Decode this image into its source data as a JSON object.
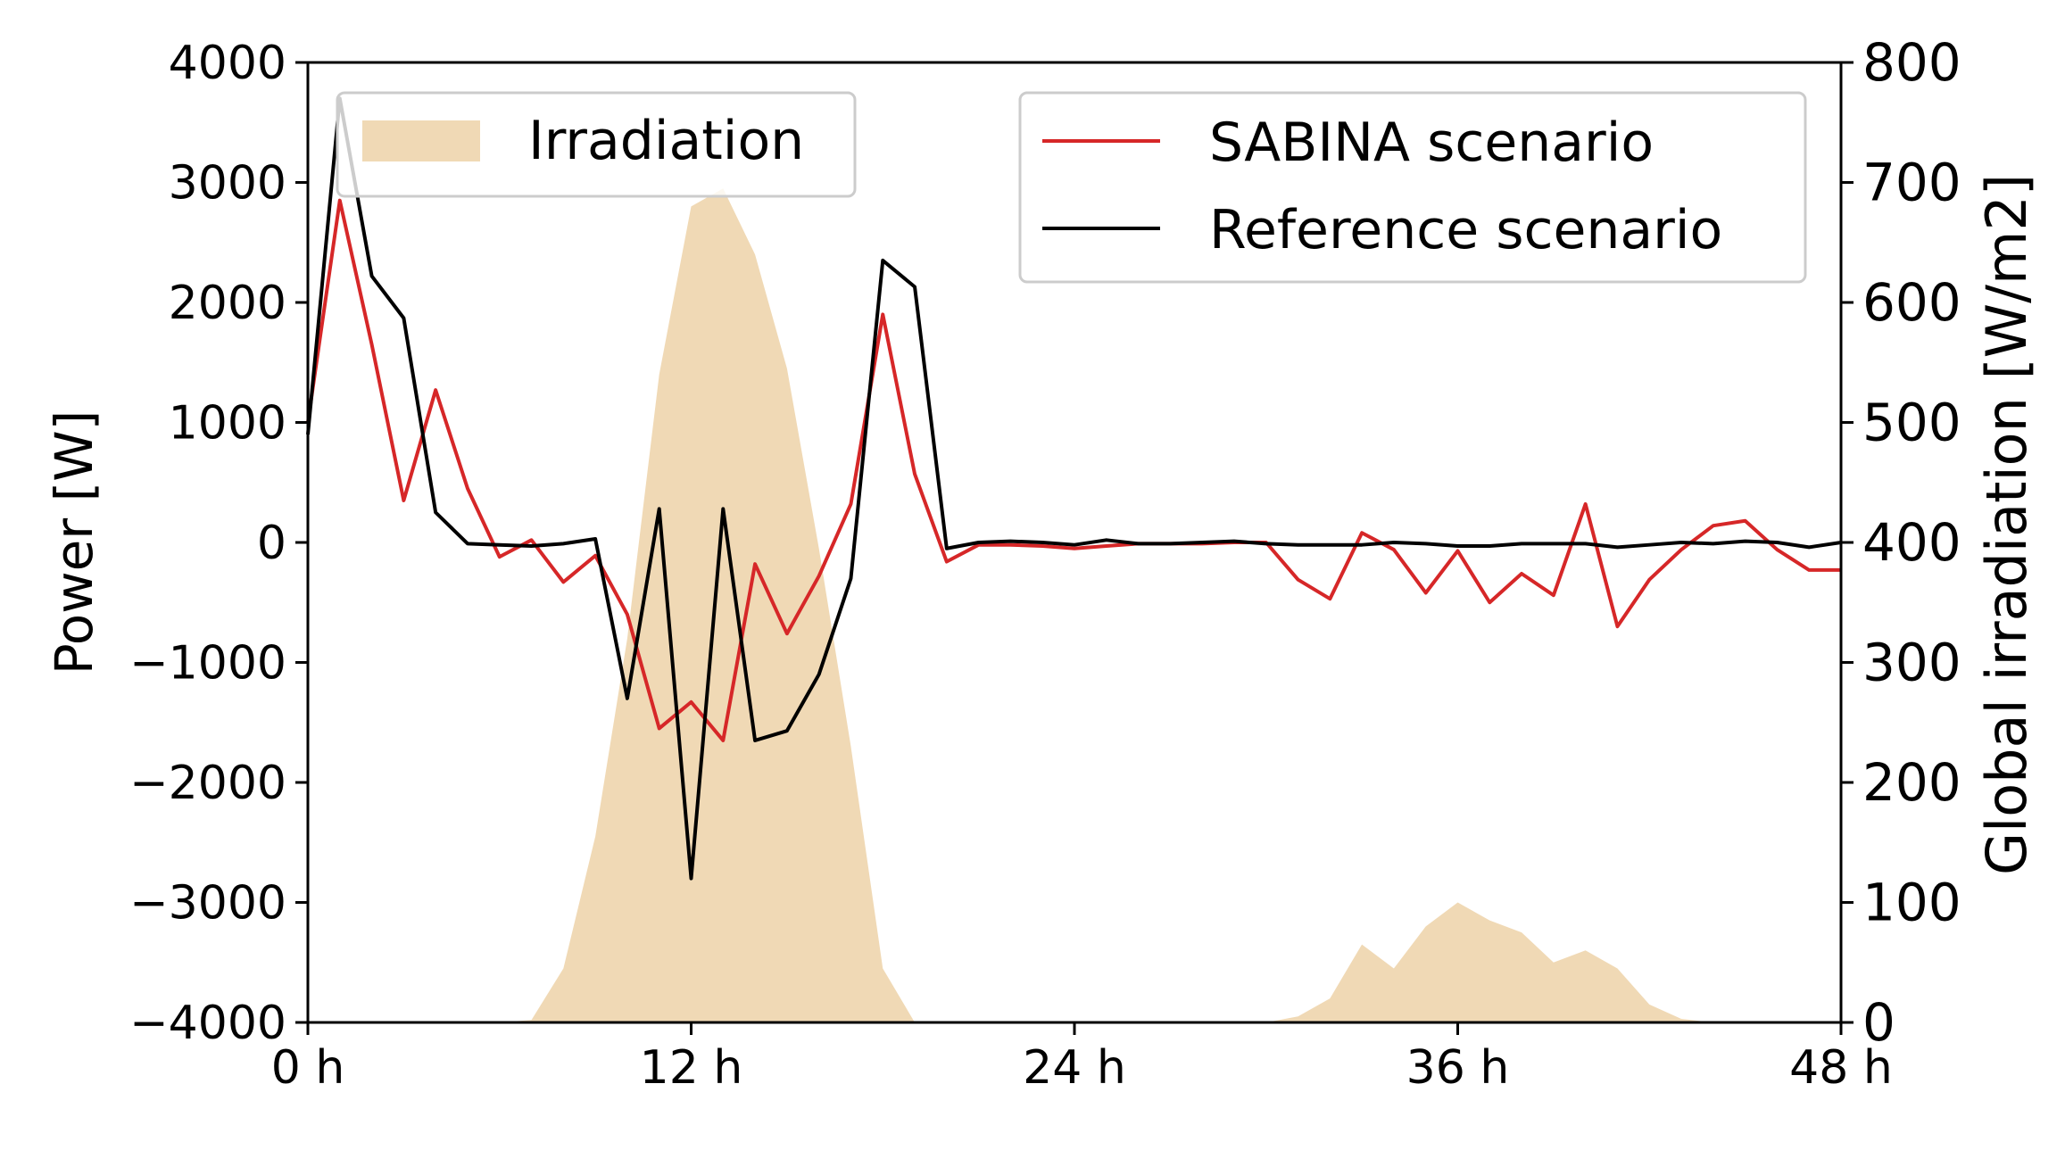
{
  "chart_data": {
    "type": "line",
    "xlabel": "",
    "x_tick_labels": [
      "0 h",
      "12 h",
      "24 h",
      "36 h",
      "48 h"
    ],
    "x_ticks": [
      0,
      12,
      24,
      36,
      48
    ],
    "xlim": [
      0,
      48
    ],
    "ylabel_left": "Power [W]",
    "ylim_left": [
      -4000,
      4000
    ],
    "y_ticks_left": [
      -4000,
      -3000,
      -2000,
      -1000,
      0,
      1000,
      2000,
      3000,
      4000
    ],
    "y_tick_labels_left": [
      "−4000",
      "−3000",
      "−2000",
      "−1000",
      "0",
      "1000",
      "2000",
      "3000",
      "4000"
    ],
    "ylabel_right": "Global irradiation [W/m2]",
    "ylim_right": [
      0,
      800
    ],
    "y_ticks_right": [
      0,
      100,
      200,
      300,
      400,
      500,
      600,
      700,
      800
    ],
    "y_tick_labels_right": [
      "0",
      "100",
      "200",
      "300",
      "400",
      "500",
      "600",
      "700",
      "800"
    ],
    "x": [
      0,
      1,
      2,
      3,
      4,
      5,
      6,
      7,
      8,
      9,
      10,
      11,
      12,
      13,
      14,
      15,
      16,
      17,
      18,
      19,
      20,
      21,
      22,
      23,
      24,
      25,
      26,
      27,
      28,
      29,
      30,
      31,
      32,
      33,
      34,
      35,
      36,
      37,
      38,
      39,
      40,
      41,
      42,
      43,
      44,
      45,
      46,
      47,
      48
    ],
    "series": [
      {
        "name": "SABINA scenario",
        "color": "#d62728",
        "axis": "left",
        "values": [
          1000,
          2850,
          1650,
          350,
          1270,
          450,
          -120,
          20,
          -330,
          -110,
          -600,
          -1550,
          -1330,
          -1650,
          -180,
          -760,
          -280,
          320,
          1900,
          570,
          -160,
          -20,
          -20,
          -30,
          -50,
          -30,
          -10,
          -10,
          -10,
          0,
          0,
          -310,
          -470,
          80,
          -60,
          -420,
          -70,
          -500,
          -260,
          -440,
          320,
          -700,
          -310,
          -60,
          140,
          180,
          -60,
          -230,
          -230
        ]
      },
      {
        "name": "Reference scenario",
        "color": "#000000",
        "axis": "left",
        "values": [
          900,
          3700,
          2220,
          1870,
          250,
          -10,
          -20,
          -30,
          -10,
          30,
          -1300,
          280,
          -2800,
          280,
          -1650,
          -1570,
          -1100,
          -300,
          2350,
          2130,
          -50,
          0,
          10,
          0,
          -20,
          20,
          -10,
          -10,
          0,
          10,
          -10,
          -20,
          -20,
          -20,
          0,
          -10,
          -30,
          -30,
          -10,
          -10,
          -10,
          -40,
          -20,
          0,
          -10,
          10,
          0,
          -40,
          0
        ]
      },
      {
        "name": "Irradiation",
        "color": "#f0d9b5",
        "axis": "right",
        "type": "area",
        "values": [
          0,
          0,
          0,
          0,
          0,
          0,
          0,
          2,
          45,
          155,
          320,
          540,
          680,
          695,
          640,
          545,
          395,
          230,
          45,
          0,
          0,
          0,
          0,
          0,
          0,
          0,
          0,
          0,
          0,
          0,
          0,
          5,
          20,
          65,
          45,
          80,
          100,
          85,
          75,
          50,
          60,
          45,
          15,
          3,
          0,
          0,
          0,
          0,
          0
        ]
      }
    ],
    "legends": [
      {
        "placement": "upper-left",
        "entries": [
          "Irradiation"
        ]
      },
      {
        "placement": "upper-right",
        "entries": [
          "SABINA scenario",
          "Reference scenario"
        ]
      }
    ],
    "grid": false
  }
}
